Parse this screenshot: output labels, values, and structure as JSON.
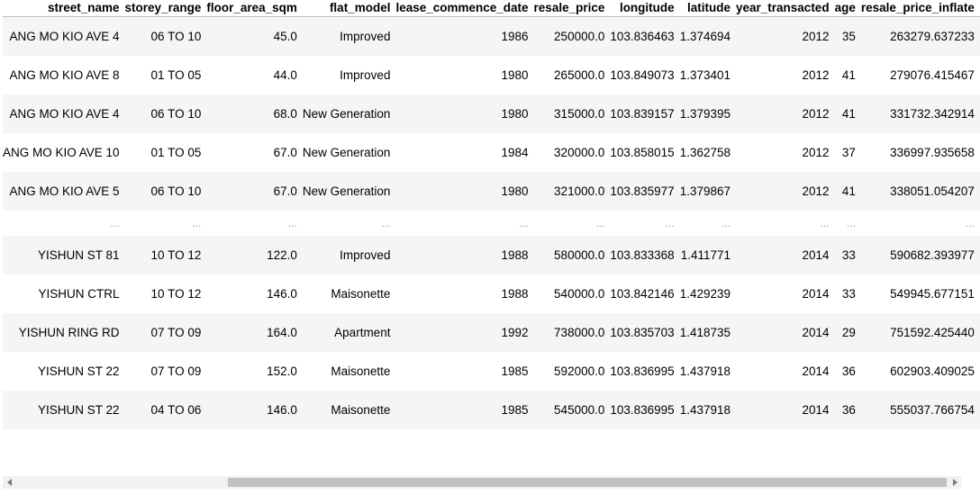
{
  "table": {
    "columns": [
      "street_name",
      "storey_range",
      "floor_area_sqm",
      "flat_model",
      "lease_commence_date",
      "resale_price",
      "longitude",
      "latitude",
      "year_transacted",
      "age",
      "resale_price_inflate"
    ],
    "rows": [
      [
        "ANG MO KIO AVE 4",
        "06 TO 10",
        "45.0",
        "Improved",
        "1986",
        "250000.0",
        "103.836463",
        "1.374694",
        "2012",
        "35",
        "263279.637233"
      ],
      [
        "ANG MO KIO AVE 8",
        "01 TO 05",
        "44.0",
        "Improved",
        "1980",
        "265000.0",
        "103.849073",
        "1.373401",
        "2012",
        "41",
        "279076.415467"
      ],
      [
        "ANG MO KIO AVE 4",
        "06 TO 10",
        "68.0",
        "New Generation",
        "1980",
        "315000.0",
        "103.839157",
        "1.379395",
        "2012",
        "41",
        "331732.342914"
      ],
      [
        "ANG MO KIO AVE 10",
        "01 TO 05",
        "67.0",
        "New Generation",
        "1984",
        "320000.0",
        "103.858015",
        "1.362758",
        "2012",
        "37",
        "336997.935658"
      ],
      [
        "ANG MO KIO AVE 5",
        "06 TO 10",
        "67.0",
        "New Generation",
        "1980",
        "321000.0",
        "103.835977",
        "1.379867",
        "2012",
        "41",
        "338051.054207"
      ],
      [
        "...",
        "...",
        "...",
        "...",
        "...",
        "...",
        "...",
        "...",
        "...",
        "...",
        "..."
      ],
      [
        "YISHUN ST 81",
        "10 TO 12",
        "122.0",
        "Improved",
        "1988",
        "580000.0",
        "103.833368",
        "1.411771",
        "2014",
        "33",
        "590682.393977"
      ],
      [
        "YISHUN CTRL",
        "10 TO 12",
        "146.0",
        "Maisonette",
        "1988",
        "540000.0",
        "103.842146",
        "1.429239",
        "2014",
        "33",
        "549945.677151"
      ],
      [
        "YISHUN RING RD",
        "07 TO 09",
        "164.0",
        "Apartment",
        "1992",
        "738000.0",
        "103.835703",
        "1.418735",
        "2014",
        "29",
        "751592.425440"
      ],
      [
        "YISHUN ST 22",
        "07 TO 09",
        "152.0",
        "Maisonette",
        "1985",
        "592000.0",
        "103.836995",
        "1.437918",
        "2014",
        "36",
        "602903.409025"
      ],
      [
        "YISHUN ST 22",
        "04 TO 06",
        "146.0",
        "Maisonette",
        "1985",
        "545000.0",
        "103.836995",
        "1.437918",
        "2014",
        "36",
        "555037.766754"
      ]
    ]
  },
  "scrollbar": {
    "position_fraction": 0.24
  },
  "colors": {
    "row_stripe": "#f5f5f5",
    "scrollbar_track": "#f1f1f1",
    "scrollbar_thumb": "#c1c1c1"
  }
}
